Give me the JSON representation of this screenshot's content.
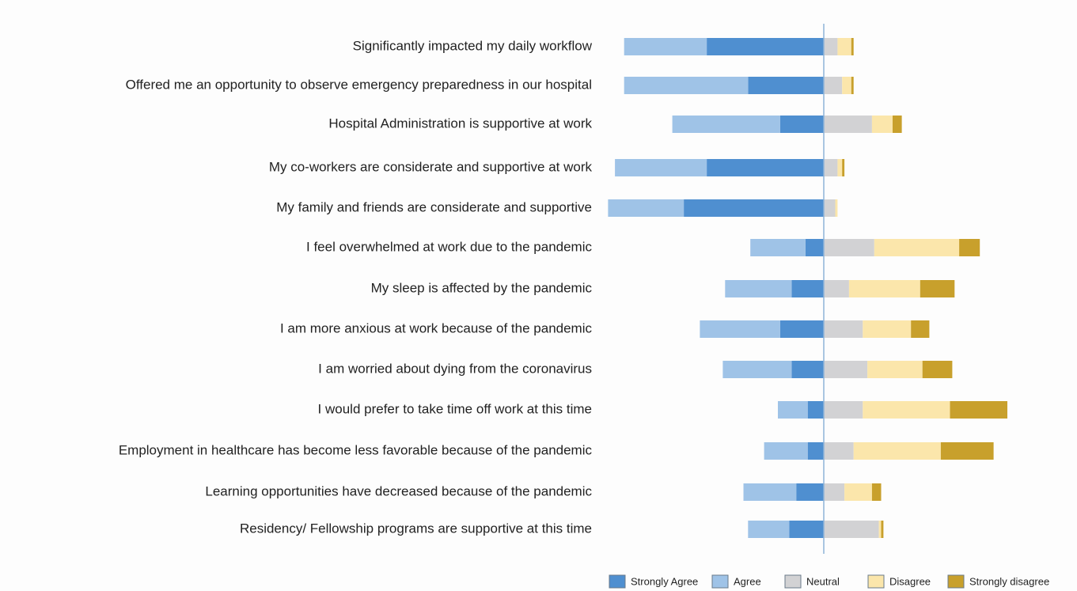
{
  "chart_data": {
    "type": "diverging_bar",
    "categories": [
      "Significantly impacted my daily workflow",
      "Offered me an opportunity to observe emergency preparedness in our hospital",
      "Hospital Administration is supportive at work",
      "My co-workers are considerate and supportive at work",
      "My family and friends are considerate and supportive",
      "I feel overwhelmed at work due to the pandemic",
      "My sleep is affected by the pandemic",
      "I am more anxious at work because of the pandemic",
      "I am worried about dying from the coronavirus",
      "I would prefer to take time off work at this time",
      "Employment in healthcare has become less favorable because of the pandemic",
      "Learning opportunities have decreased because of the pandemic",
      "Residency/ Fellowship programs are supportive at this time"
    ],
    "series": [
      {
        "name": "Strongly Agree",
        "color": "#4f8fd0",
        "values": [
          51,
          33,
          19,
          51,
          61,
          8,
          14,
          19,
          14,
          7,
          7,
          12,
          15
        ]
      },
      {
        "name": "Agree",
        "color": "#9fc3e7",
        "values": [
          36,
          54,
          47,
          40,
          33,
          24,
          29,
          35,
          30,
          13,
          19,
          23,
          18
        ]
      },
      {
        "name": "Neutral",
        "color": "#d2d2d4",
        "values": [
          6,
          8,
          21,
          6,
          5,
          22,
          11,
          17,
          19,
          17,
          13,
          9,
          24
        ]
      },
      {
        "name": "Disagree",
        "color": "#fbe6ab",
        "values": [
          6,
          4,
          9,
          2,
          1,
          37,
          31,
          21,
          24,
          38,
          38,
          12,
          1
        ]
      },
      {
        "name": "Strongly disagree",
        "color": "#c8a02c",
        "values": [
          1,
          1,
          4,
          1,
          0,
          9,
          15,
          8,
          13,
          25,
          23,
          4,
          1
        ]
      }
    ],
    "legend": "bottom-right"
  }
}
